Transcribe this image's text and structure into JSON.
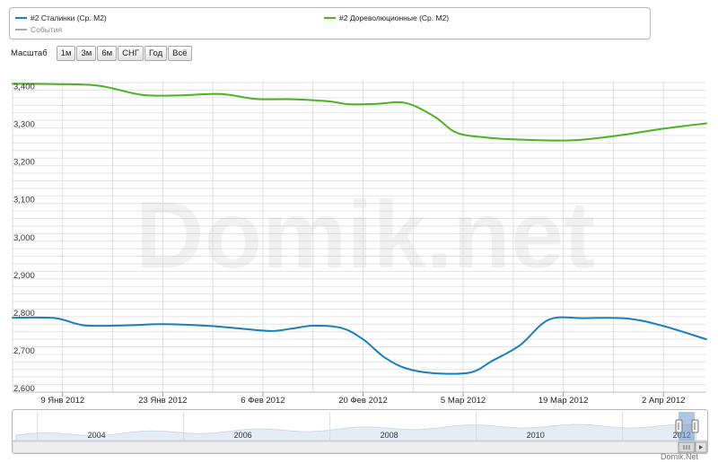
{
  "legend": {
    "items": [
      {
        "label": "#2 Сталинки (Ср. M2)",
        "color": "#1a7fbd"
      },
      {
        "label": "#2 Дореволюционные (Ср. M2)",
        "color": "#4cb220"
      },
      {
        "label": "События",
        "color": "#aaaaaa"
      }
    ]
  },
  "zoom": {
    "label": "Масштаб",
    "buttons": [
      "1м",
      "3м",
      "6м",
      "СНГ",
      "Год",
      "Всё"
    ]
  },
  "watermark": "Domik.net",
  "copyright": "Domik.Net",
  "colors": {
    "series1": "#1a7fbd",
    "series2": "#4cb220",
    "grid": "#e3e3e3",
    "navigator_fill": "#e6ecf3"
  },
  "chart_data": {
    "type": "line",
    "x_ticks": [
      "9 Янв 2012",
      "23 Янв 2012",
      "6 Фев 2012",
      "20 Фев 2012",
      "5 Мар 2012",
      "19 Мар 2012",
      "2 Апр 2012"
    ],
    "x_range": [
      "2012-01-02",
      "2012-04-08"
    ],
    "y_ticks": [
      "3,400",
      "3,300",
      "3,200",
      "3,100",
      "3,000",
      "2,900",
      "2,800",
      "2,700",
      "2,600"
    ],
    "ylim": [
      2600,
      3425
    ],
    "grid": true,
    "legend_position": "top",
    "series": [
      {
        "name": "#2 Сталинки (Ср. M2)",
        "color": "#1a7fbd",
        "points": [
          [
            "2012-01-02",
            2797
          ],
          [
            "2012-01-08",
            2796
          ],
          [
            "2012-01-12",
            2777
          ],
          [
            "2012-01-18",
            2777
          ],
          [
            "2012-01-23",
            2780
          ],
          [
            "2012-01-29",
            2776
          ],
          [
            "2012-02-02",
            2770
          ],
          [
            "2012-02-07",
            2762
          ],
          [
            "2012-02-10",
            2768
          ],
          [
            "2012-02-13",
            2776
          ],
          [
            "2012-02-17",
            2770
          ],
          [
            "2012-02-20",
            2740
          ],
          [
            "2012-02-23",
            2692
          ],
          [
            "2012-02-26",
            2663
          ],
          [
            "2012-03-01",
            2650
          ],
          [
            "2012-03-06",
            2652
          ],
          [
            "2012-03-09",
            2682
          ],
          [
            "2012-03-13",
            2725
          ],
          [
            "2012-03-17",
            2792
          ],
          [
            "2012-03-22",
            2796
          ],
          [
            "2012-03-28",
            2795
          ],
          [
            "2012-04-02",
            2775
          ],
          [
            "2012-04-08",
            2740
          ]
        ]
      },
      {
        "name": "#2 Дореволюционные (Ср. M2)",
        "color": "#4cb220",
        "points": [
          [
            "2012-01-02",
            3417
          ],
          [
            "2012-01-08",
            3416
          ],
          [
            "2012-01-14",
            3412
          ],
          [
            "2012-01-20",
            3388
          ],
          [
            "2012-01-25",
            3386
          ],
          [
            "2012-01-31",
            3390
          ],
          [
            "2012-02-05",
            3377
          ],
          [
            "2012-02-10",
            3376
          ],
          [
            "2012-02-15",
            3371
          ],
          [
            "2012-02-18",
            3363
          ],
          [
            "2012-02-22",
            3364
          ],
          [
            "2012-02-26",
            3366
          ],
          [
            "2012-03-01",
            3330
          ],
          [
            "2012-03-04",
            3288
          ],
          [
            "2012-03-08",
            3275
          ],
          [
            "2012-03-13",
            3269
          ],
          [
            "2012-03-20",
            3267
          ],
          [
            "2012-03-26",
            3278
          ],
          [
            "2012-04-02",
            3298
          ],
          [
            "2012-04-08",
            3312
          ]
        ]
      }
    ],
    "navigator": {
      "x_ticks": [
        "2004",
        "2006",
        "2008",
        "2010",
        "2012"
      ],
      "x_range": [
        "2003-01",
        "2012-04"
      ],
      "selection_range": [
        "2012-01",
        "2012-04"
      ]
    }
  }
}
